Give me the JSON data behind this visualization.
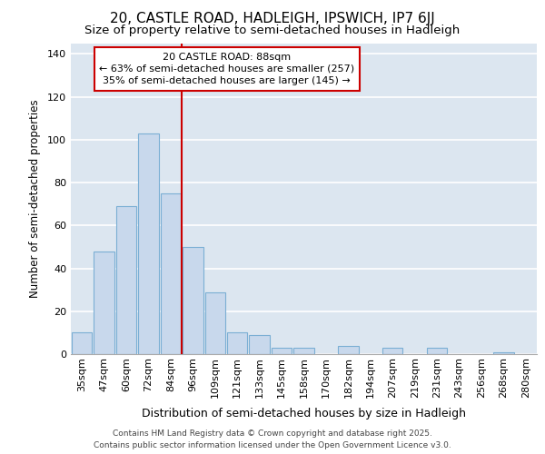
{
  "title1": "20, CASTLE ROAD, HADLEIGH, IPSWICH, IP7 6JJ",
  "title2": "Size of property relative to semi-detached houses in Hadleigh",
  "xlabel": "Distribution of semi-detached houses by size in Hadleigh",
  "ylabel": "Number of semi-detached properties",
  "categories": [
    "35sqm",
    "47sqm",
    "60sqm",
    "72sqm",
    "84sqm",
    "96sqm",
    "109sqm",
    "121sqm",
    "133sqm",
    "145sqm",
    "158sqm",
    "170sqm",
    "182sqm",
    "194sqm",
    "207sqm",
    "219sqm",
    "231sqm",
    "243sqm",
    "256sqm",
    "268sqm",
    "280sqm"
  ],
  "values": [
    10,
    48,
    69,
    103,
    75,
    50,
    29,
    10,
    9,
    3,
    3,
    0,
    4,
    0,
    3,
    0,
    3,
    0,
    0,
    1,
    0
  ],
  "bar_color": "#c8d8ec",
  "bar_edge_color": "#7bafd4",
  "plot_bg_color": "#dce6f0",
  "fig_bg_color": "#ffffff",
  "grid_color": "#ffffff",
  "red_line_x": 4.5,
  "annotation_title": "20 CASTLE ROAD: 88sqm",
  "annotation_line1": "← 63% of semi-detached houses are smaller (257)",
  "annotation_line2": "35% of semi-detached houses are larger (145) →",
  "annotation_box_facecolor": "#ffffff",
  "annotation_box_edgecolor": "#cc0000",
  "red_line_color": "#cc0000",
  "footer1": "Contains HM Land Registry data © Crown copyright and database right 2025.",
  "footer2": "Contains public sector information licensed under the Open Government Licence v3.0.",
  "ylim_max": 145,
  "yticks": [
    0,
    20,
    40,
    60,
    80,
    100,
    120,
    140
  ],
  "title1_fontsize": 11,
  "title2_fontsize": 9.5,
  "ylabel_fontsize": 8.5,
  "xlabel_fontsize": 9,
  "tick_fontsize": 8,
  "annotation_fontsize": 8,
  "footer_fontsize": 6.5
}
